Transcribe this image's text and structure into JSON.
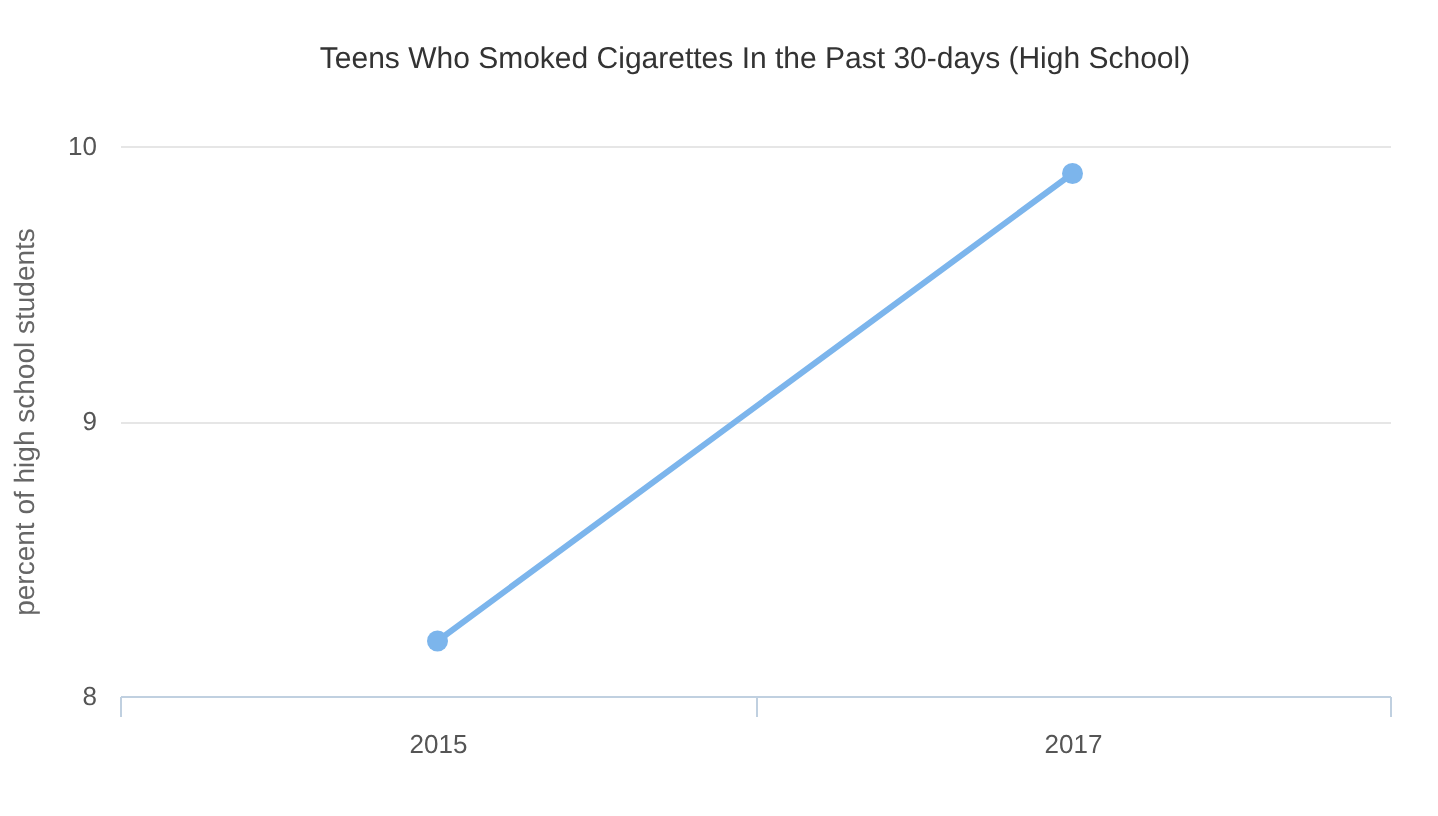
{
  "chart_data": {
    "type": "line",
    "title": "Teens Who Smoked Cigarettes In the Past 30-days (High School)",
    "ylabel": "percent of high school students",
    "categories": [
      "2015",
      "2017"
    ],
    "series": [
      {
        "color": "#7cb5ec",
        "values": [
          8.2,
          9.9
        ]
      }
    ],
    "ylim": [
      8,
      10
    ],
    "yticks": [
      8,
      9,
      10
    ],
    "grid": "y",
    "marker": "circle",
    "line_style": "solid"
  }
}
